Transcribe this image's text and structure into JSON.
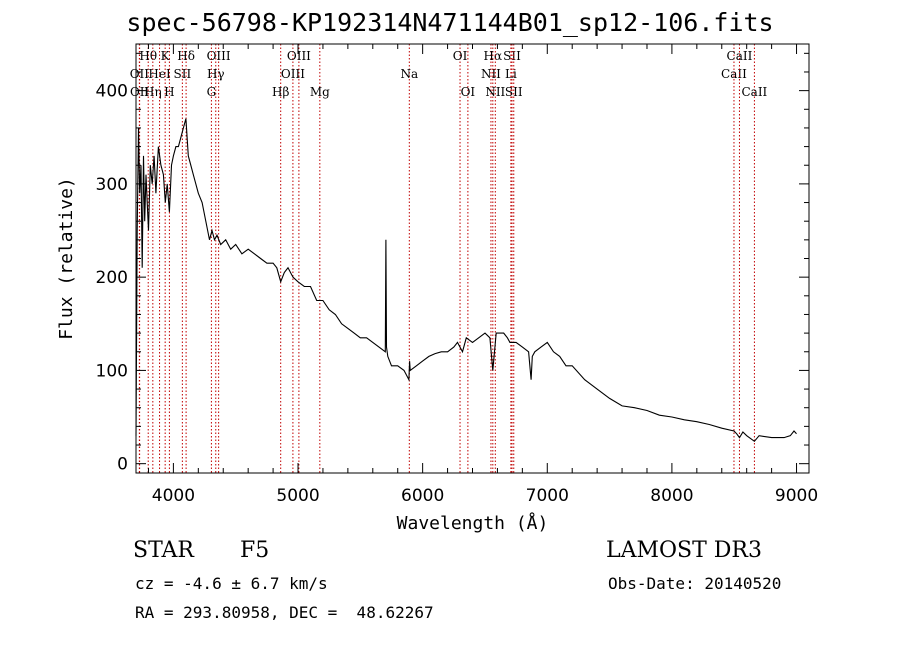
{
  "title": "spec-56798-KP192314N471144B01_sp12-106.fits",
  "footer": {
    "class_label": "STAR",
    "subclass_label": "F5",
    "survey": "LAMOST DR3",
    "cz": "cz = -4.6 ± 6.7 km/s",
    "obs_date": "Obs-Date: 20140520",
    "coords": "RA = 293.80958, DEC =  48.62267"
  },
  "colors": {
    "line_marker": "#c00000",
    "spectrum": "#000000"
  },
  "chart_data": {
    "type": "line",
    "title": "spec-56798-KP192314N471144B01_sp12-106.fits",
    "xlabel": "Wavelength (Å)",
    "ylabel": "Flux (relative)",
    "xlim": [
      3700,
      9100
    ],
    "ylim": [
      -10,
      450
    ],
    "xticks": [
      4000,
      5000,
      6000,
      7000,
      8000,
      9000
    ],
    "yticks": [
      0,
      100,
      200,
      300,
      400
    ],
    "grid": false,
    "legend": "none",
    "series": [
      {
        "name": "flux",
        "x": [
          3700,
          3710,
          3720,
          3730,
          3740,
          3750,
          3760,
          3770,
          3780,
          3790,
          3800,
          3815,
          3830,
          3845,
          3860,
          3880,
          3900,
          3920,
          3935,
          3950,
          3968,
          3985,
          4000,
          4020,
          4040,
          4060,
          4080,
          4100,
          4120,
          4140,
          4160,
          4180,
          4200,
          4230,
          4260,
          4290,
          4310,
          4330,
          4350,
          4380,
          4420,
          4460,
          4500,
          4550,
          4600,
          4650,
          4700,
          4750,
          4800,
          4830,
          4861,
          4890,
          4920,
          4960,
          5000,
          5050,
          5100,
          5150,
          5200,
          5250,
          5300,
          5350,
          5400,
          5450,
          5500,
          5550,
          5600,
          5650,
          5700,
          5705,
          5710,
          5720,
          5750,
          5800,
          5850,
          5890,
          5895,
          5900,
          5950,
          6000,
          6050,
          6100,
          6150,
          6200,
          6250,
          6280,
          6300,
          6320,
          6350,
          6400,
          6450,
          6500,
          6540,
          6563,
          6590,
          6620,
          6650,
          6680,
          6700,
          6750,
          6800,
          6850,
          6870,
          6880,
          6900,
          6950,
          7000,
          7050,
          7100,
          7150,
          7200,
          7300,
          7400,
          7500,
          7600,
          7700,
          7800,
          7900,
          8000,
          8100,
          8200,
          8300,
          8400,
          8498,
          8520,
          8542,
          8570,
          8600,
          8662,
          8700,
          8800,
          8900,
          8950,
          8980,
          9000
        ],
        "y": [
          30,
          250,
          360,
          290,
          320,
          210,
          330,
          260,
          310,
          280,
          250,
          320,
          300,
          330,
          290,
          340,
          320,
          310,
          280,
          300,
          270,
          320,
          330,
          340,
          340,
          350,
          360,
          370,
          330,
          320,
          310,
          300,
          290,
          280,
          260,
          240,
          250,
          240,
          245,
          235,
          240,
          230,
          235,
          225,
          230,
          225,
          220,
          215,
          215,
          210,
          195,
          205,
          210,
          200,
          195,
          190,
          190,
          175,
          175,
          165,
          160,
          150,
          145,
          140,
          135,
          135,
          130,
          125,
          120,
          240,
          125,
          115,
          105,
          105,
          100,
          90,
          110,
          100,
          105,
          110,
          115,
          118,
          120,
          120,
          125,
          130,
          125,
          120,
          135,
          130,
          135,
          140,
          135,
          100,
          140,
          140,
          140,
          135,
          130,
          130,
          125,
          120,
          90,
          115,
          120,
          125,
          130,
          120,
          115,
          105,
          105,
          90,
          80,
          70,
          62,
          60,
          57,
          52,
          50,
          47,
          45,
          42,
          38,
          35,
          32,
          28,
          34,
          30,
          24,
          30,
          28,
          28,
          30,
          35,
          32
        ]
      }
    ],
    "line_markers": [
      {
        "name": "Hθ",
        "wavelength": 3798,
        "row": 1
      },
      {
        "name": "OII",
        "wavelength": 3727,
        "row": 2
      },
      {
        "name": "OII",
        "wavelength": 3729,
        "row": 3
      },
      {
        "name": "Hη",
        "wavelength": 3835,
        "row": 3
      },
      {
        "name": "HeI",
        "wavelength": 3889,
        "row": 2
      },
      {
        "name": "K",
        "wavelength": 3934,
        "row": 1
      },
      {
        "name": "H",
        "wavelength": 3968,
        "row": 3
      },
      {
        "name": "SII",
        "wavelength": 4072,
        "row": 2
      },
      {
        "name": "Hδ",
        "wavelength": 4102,
        "row": 1
      },
      {
        "name": "OIII",
        "wavelength": 4363,
        "row": 1
      },
      {
        "name": "Hγ",
        "wavelength": 4340,
        "row": 2
      },
      {
        "name": "G",
        "wavelength": 4305,
        "row": 3
      },
      {
        "name": "Hβ",
        "wavelength": 4861,
        "row": 3
      },
      {
        "name": "OIII",
        "wavelength": 4959,
        "row": 2
      },
      {
        "name": "OIII",
        "wavelength": 5007,
        "row": 1
      },
      {
        "name": "Mg",
        "wavelength": 5175,
        "row": 3
      },
      {
        "name": "Na",
        "wavelength": 5893,
        "row": 2
      },
      {
        "name": "OI",
        "wavelength": 6300,
        "row": 1
      },
      {
        "name": "OI",
        "wavelength": 6363,
        "row": 3
      },
      {
        "name": "NII",
        "wavelength": 6548,
        "row": 2
      },
      {
        "name": "Hα",
        "wavelength": 6563,
        "row": 1
      },
      {
        "name": "NII",
        "wavelength": 6583,
        "row": 3
      },
      {
        "name": "SII",
        "wavelength": 6717,
        "row": 1
      },
      {
        "name": "Li",
        "wavelength": 6708,
        "row": 2
      },
      {
        "name": "SII",
        "wavelength": 6731,
        "row": 3
      },
      {
        "name": "CaII",
        "wavelength": 8498,
        "row": 2
      },
      {
        "name": "CaII",
        "wavelength": 8542,
        "row": 1
      },
      {
        "name": "CaII",
        "wavelength": 8662,
        "row": 3
      }
    ]
  }
}
